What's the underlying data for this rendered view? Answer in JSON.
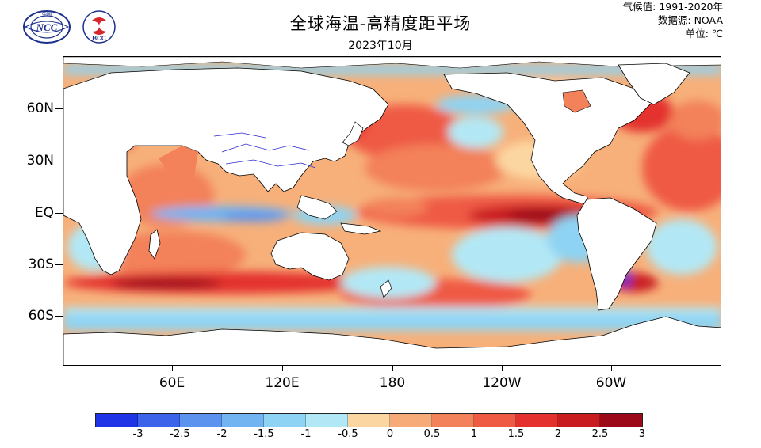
{
  "header": {
    "title": "全球海温-高精度距平场",
    "subtitle": "2023年10月",
    "climatology": "气候值: 1991-2020年",
    "source": "数据源: NOAA",
    "unit": "单位: ℃"
  },
  "logos": {
    "ncc_text": "NCC",
    "ncc_top": "中国",
    "bcc_text": "BCC"
  },
  "map": {
    "lat_labels": [
      "60N",
      "30N",
      "EQ",
      "30S",
      "60S"
    ],
    "lon_labels": [
      "60E",
      "120E",
      "180",
      "120W",
      "60W"
    ],
    "projection": "cylindrical, 0°–360° centred on Pacific",
    "ocean_base_color": "#f7b07a",
    "land_color": "#ffffff",
    "coast_color": "#000000",
    "river_color": "#2b2bd0"
  },
  "colorbar": {
    "colors": [
      "#1f34e6",
      "#3b64ea",
      "#5c93ee",
      "#72b4f2",
      "#8ed3f3",
      "#b2e8f5",
      "#fcd6a0",
      "#f7ab78",
      "#f3815a",
      "#ef5a45",
      "#e4312d",
      "#c91c21",
      "#9c0a1a"
    ],
    "labels": [
      "-3",
      "-2.5",
      "-2",
      "-1.5",
      "-1",
      "-0.5",
      "0",
      "0.5",
      "1",
      "1.5",
      "2",
      "2.5",
      "3"
    ]
  }
}
